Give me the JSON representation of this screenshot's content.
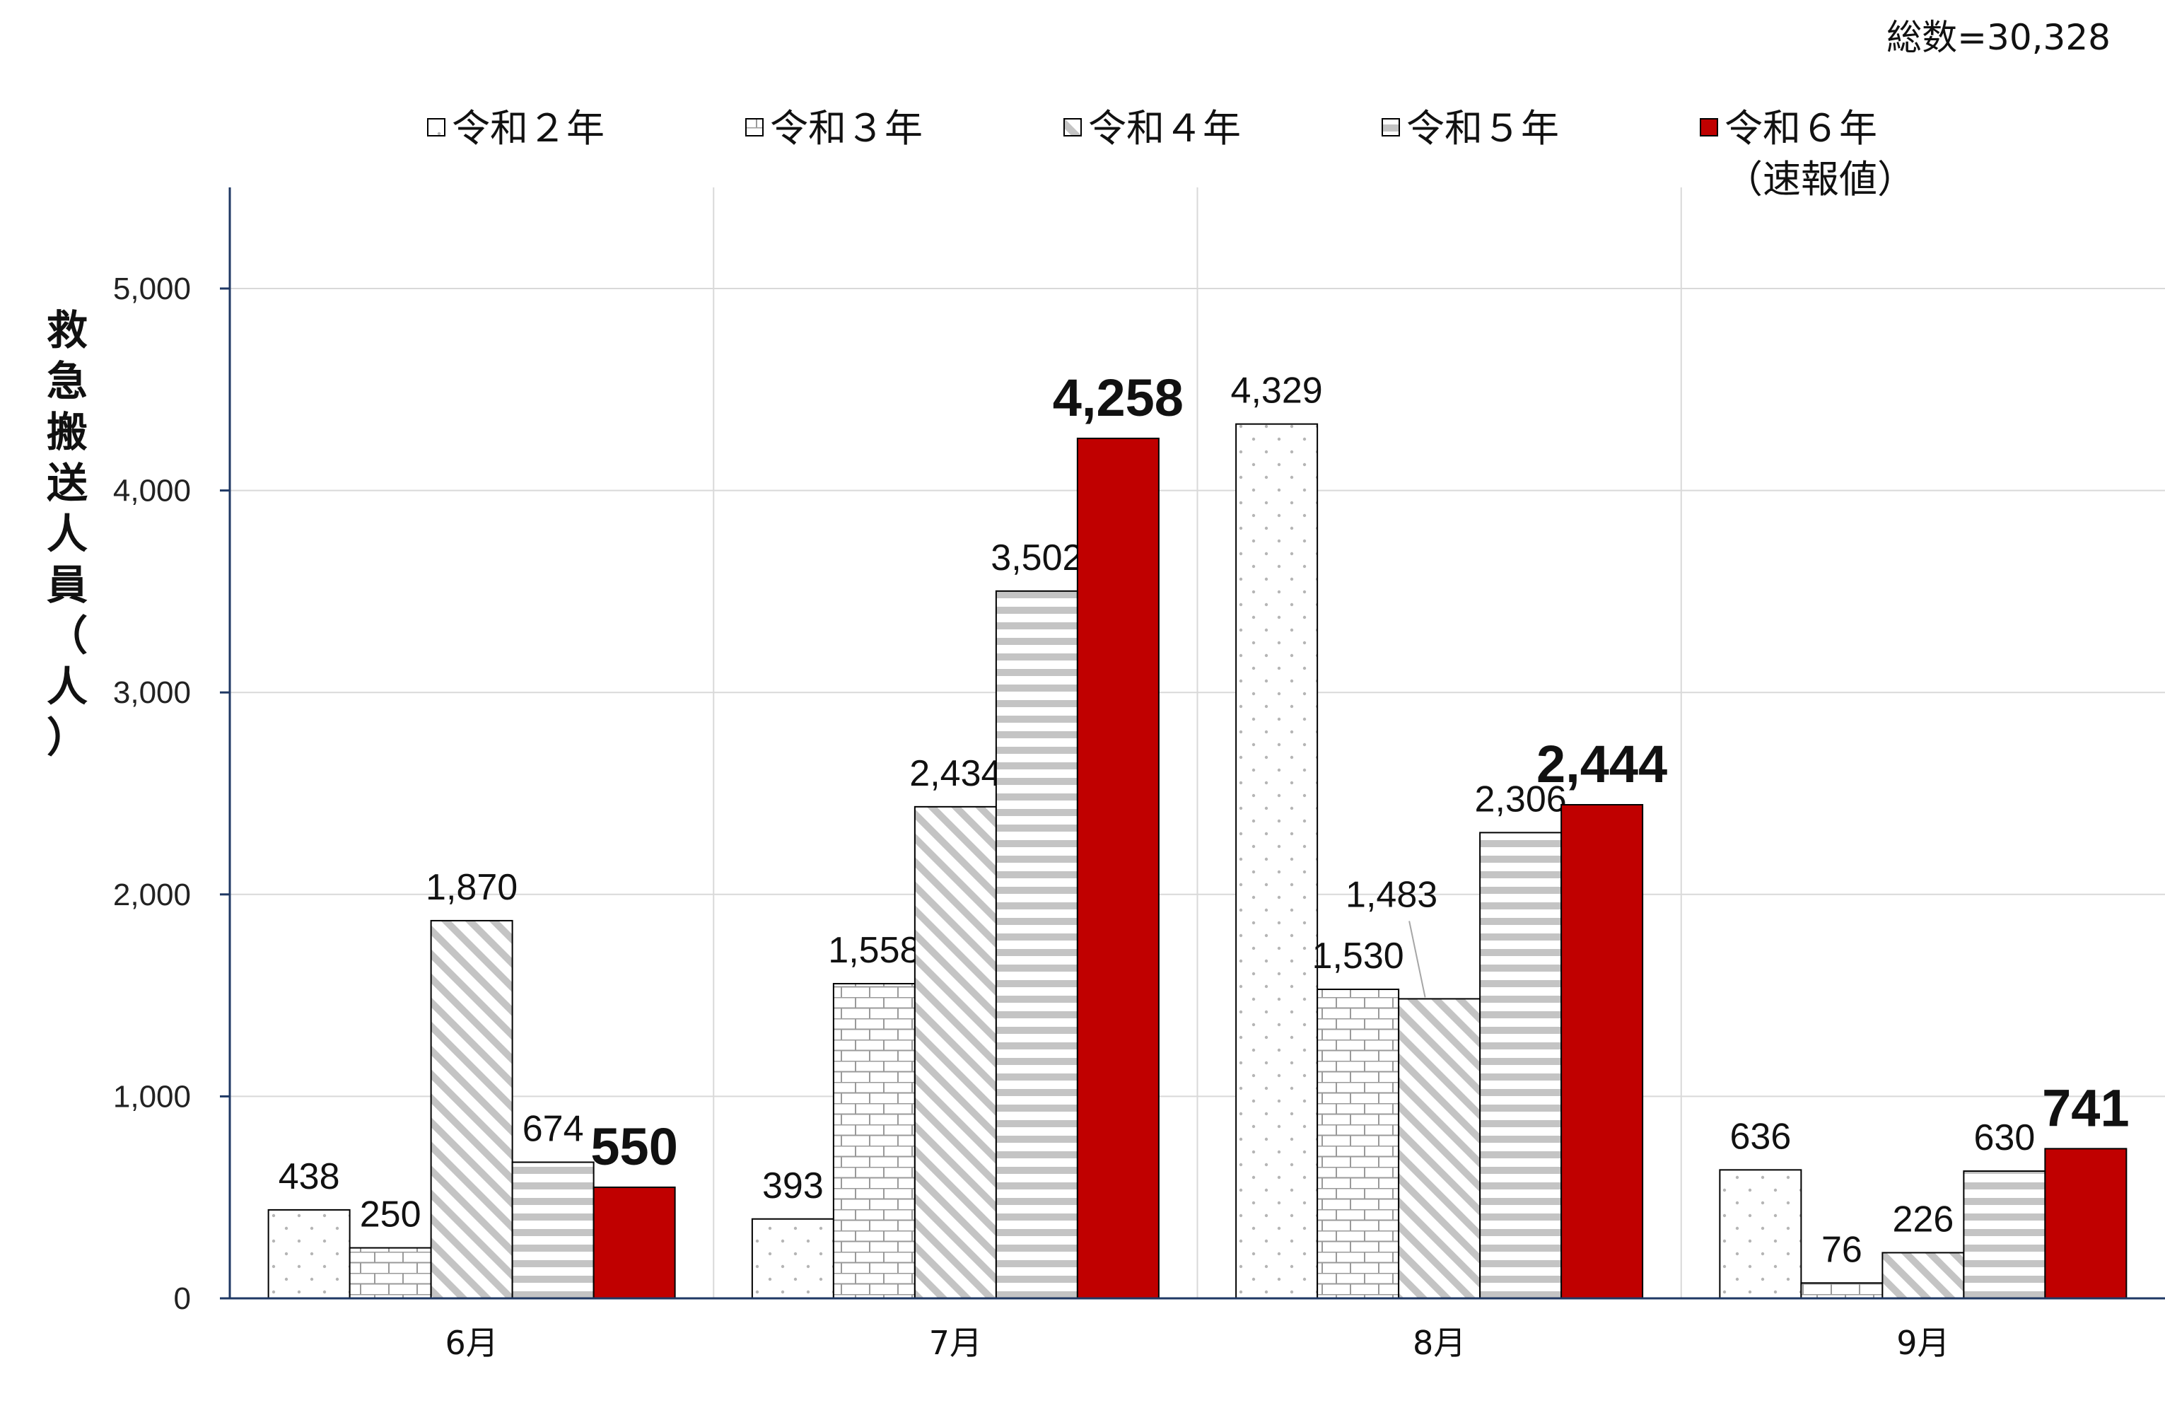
{
  "total_label": "総数=30,328",
  "chart_data": {
    "type": "bar",
    "title": "",
    "xlabel": "",
    "ylabel": "救急搬送人員（人）",
    "ylim": [
      0,
      5500
    ],
    "yticks": [
      0,
      1000,
      2000,
      3000,
      4000,
      5000
    ],
    "ytick_labels": [
      "0",
      "1,000",
      "2,000",
      "3,000",
      "4,000",
      "5,000"
    ],
    "categories": [
      "6月",
      "7月",
      "8月",
      "9月"
    ],
    "grid": true,
    "legend_position": "top",
    "series": [
      {
        "name": "令和２年",
        "pattern": "dots",
        "color": "#ffffff",
        "values": [
          438,
          393,
          4329,
          636
        ],
        "labels": [
          "438",
          "393",
          "4,329",
          "636"
        ]
      },
      {
        "name": "令和３年",
        "pattern": "bricks",
        "color": "#ffffff",
        "values": [
          250,
          1558,
          1530,
          76
        ],
        "labels": [
          "250",
          "1,558",
          "1,530",
          "76"
        ]
      },
      {
        "name": "令和４年",
        "pattern": "diagonal",
        "color": "#ffffff",
        "values": [
          1870,
          2434,
          1483,
          226
        ],
        "labels": [
          "1,870",
          "2,434",
          "1,483",
          "226"
        ]
      },
      {
        "name": "令和５年",
        "pattern": "horizontal",
        "color": "#ffffff",
        "values": [
          674,
          3502,
          2306,
          630
        ],
        "labels": [
          "674",
          "3,502",
          "2,306",
          "630"
        ]
      },
      {
        "name": "令和６年",
        "name_sub": "（速報値）",
        "pattern": "solid",
        "color": "#c00000",
        "values": [
          550,
          4258,
          2444,
          741
        ],
        "labels": [
          "550",
          "4,258",
          "2,444",
          "741"
        ],
        "highlight": true
      }
    ]
  }
}
